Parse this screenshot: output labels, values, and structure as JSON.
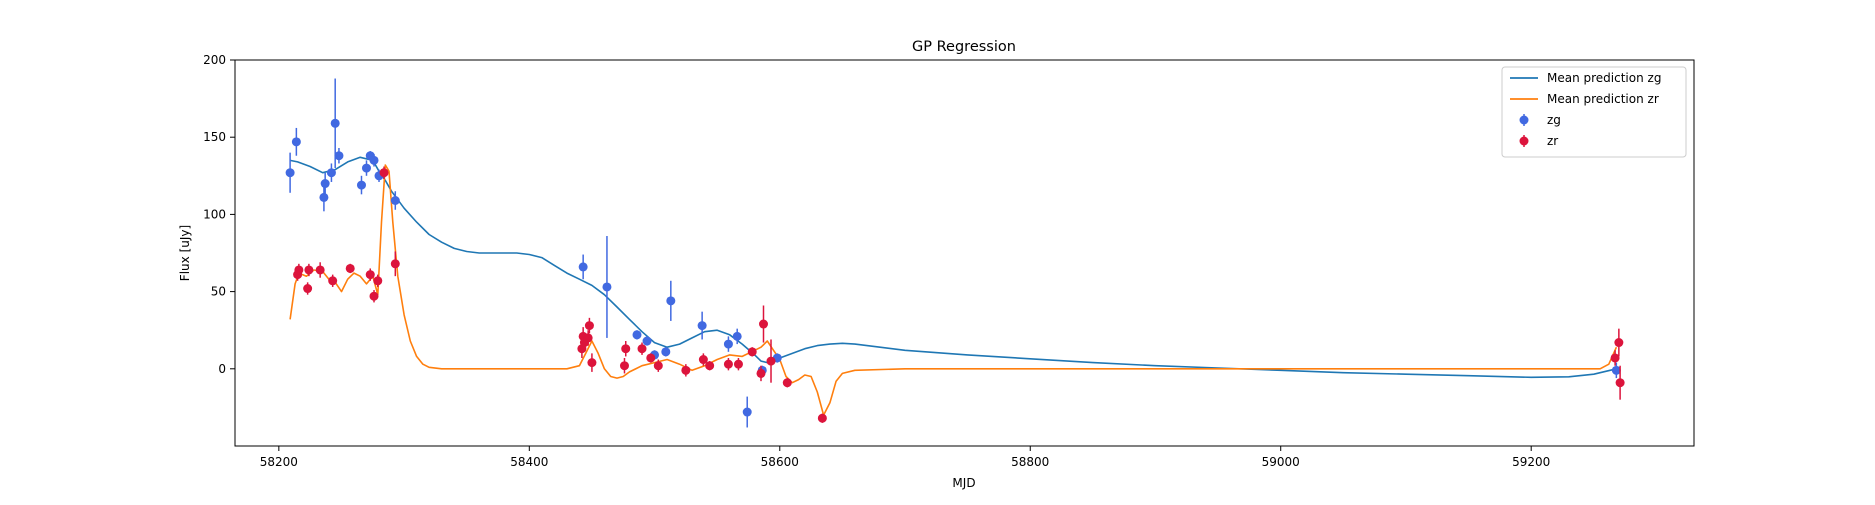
{
  "chart_data": {
    "type": "scatter",
    "title": "GP Regression",
    "xlabel": "MJD",
    "ylabel": "Flux [uJy]",
    "xlim": [
      58165,
      59330
    ],
    "ylim": [
      -50,
      200
    ],
    "xticks": [
      58200,
      58400,
      58600,
      58800,
      59000,
      59200
    ],
    "yticks": [
      0,
      50,
      100,
      150,
      200
    ],
    "grid": false,
    "legend_position": "top-right",
    "colors": {
      "zg_line": "#1f77b4",
      "zr_line": "#ff7f0e",
      "zg_points": "#4169e1",
      "zr_points": "#dc143c"
    },
    "series": [
      {
        "name": "Mean prediction zg",
        "kind": "line",
        "color": "#1f77b4",
        "x": [
          58209,
          58215,
          58225,
          58235,
          58245,
          58255,
          58265,
          58275,
          58280,
          58285,
          58290,
          58300,
          58310,
          58320,
          58330,
          58340,
          58350,
          58360,
          58370,
          58380,
          58390,
          58400,
          58410,
          58420,
          58430,
          58440,
          58450,
          58460,
          58470,
          58480,
          58490,
          58500,
          58510,
          58520,
          58530,
          58540,
          58550,
          58560,
          58570,
          58580,
          58585,
          58590,
          58600,
          58610,
          58620,
          58630,
          58640,
          58650,
          58660,
          58680,
          58700,
          58750,
          58800,
          58850,
          58900,
          58950,
          59000,
          59050,
          59100,
          59150,
          59200,
          59230,
          59250,
          59268
        ],
        "y": [
          135,
          134,
          131,
          127,
          129,
          134,
          137,
          135,
          128,
          122,
          115,
          104,
          95,
          87,
          82,
          78,
          76,
          75,
          75,
          75,
          75,
          74,
          72,
          67,
          62,
          58,
          54,
          48,
          40,
          32,
          24,
          17,
          14,
          16,
          20,
          24,
          25,
          22,
          16,
          9,
          5,
          4,
          7,
          10,
          13,
          15,
          16,
          16.5,
          16,
          14,
          12,
          9,
          6.5,
          4,
          2,
          0.5,
          -1,
          -2.5,
          -3.5,
          -4.5,
          -5.5,
          -5.2,
          -3.5,
          0
        ]
      },
      {
        "name": "Mean prediction zr",
        "kind": "line",
        "color": "#ff7f0e",
        "x": [
          58209,
          58213,
          58216,
          58222,
          58228,
          58235,
          58240,
          58245,
          58250,
          58255,
          58260,
          58265,
          58270,
          58275,
          58279,
          58282,
          58285,
          58288,
          58291,
          58295,
          58300,
          58305,
          58310,
          58315,
          58320,
          58330,
          58350,
          58400,
          58430,
          58440,
          58445,
          58450,
          58455,
          58460,
          58465,
          58470,
          58475,
          58480,
          58490,
          58500,
          58510,
          58520,
          58530,
          58540,
          58550,
          58560,
          58570,
          58580,
          58585,
          58590,
          58595,
          58600,
          58605,
          58610,
          58615,
          58620,
          58625,
          58630,
          58635,
          58640,
          58645,
          58650,
          58660,
          58700,
          58800,
          59000,
          59200,
          59255,
          59262,
          59268
        ],
        "y": [
          32,
          55,
          62,
          60,
          64,
          63,
          58,
          56,
          50,
          58,
          62,
          60,
          55,
          60,
          48,
          95,
          132,
          128,
          95,
          60,
          35,
          18,
          8,
          3,
          1,
          0,
          0,
          0,
          0,
          2,
          10,
          18,
          10,
          0,
          -5,
          -6,
          -5,
          -2,
          2,
          4,
          6,
          3,
          -1,
          2,
          6,
          9,
          8,
          12,
          14,
          18,
          12,
          6,
          -5,
          -9,
          -7,
          -4,
          -5,
          -15,
          -30,
          -22,
          -8,
          -3,
          -1,
          0,
          0,
          0,
          0,
          0,
          3,
          14
        ]
      },
      {
        "name": "zg",
        "kind": "errorbar",
        "color": "#4169e1",
        "points": [
          {
            "x": 58209,
            "y": 127,
            "err": 13
          },
          {
            "x": 58214,
            "y": 147,
            "err": 9
          },
          {
            "x": 58236,
            "y": 111,
            "err": 9
          },
          {
            "x": 58237,
            "y": 120,
            "err": 7
          },
          {
            "x": 58242,
            "y": 127,
            "err": 6
          },
          {
            "x": 58245,
            "y": 159,
            "err": 29
          },
          {
            "x": 58248,
            "y": 138,
            "err": 5
          },
          {
            "x": 58266,
            "y": 119,
            "err": 6
          },
          {
            "x": 58270,
            "y": 130,
            "err": 5
          },
          {
            "x": 58273,
            "y": 138,
            "err": 3
          },
          {
            "x": 58276,
            "y": 135,
            "err": 4
          },
          {
            "x": 58280,
            "y": 125,
            "err": 4
          },
          {
            "x": 58293,
            "y": 109,
            "err": 6
          },
          {
            "x": 58443,
            "y": 66,
            "err": 8
          },
          {
            "x": 58462,
            "y": 53,
            "err": 33
          },
          {
            "x": 58486,
            "y": 22,
            "err": 3
          },
          {
            "x": 58494,
            "y": 18,
            "err": 3
          },
          {
            "x": 58500,
            "y": 9,
            "err": 3
          },
          {
            "x": 58509,
            "y": 11,
            "err": 3
          },
          {
            "x": 58513,
            "y": 44,
            "err": 13
          },
          {
            "x": 58538,
            "y": 28,
            "err": 9
          },
          {
            "x": 58559,
            "y": 16,
            "err": 5
          },
          {
            "x": 58566,
            "y": 21,
            "err": 5
          },
          {
            "x": 58574,
            "y": -28,
            "err": 10
          },
          {
            "x": 58586,
            "y": -1,
            "err": 3
          },
          {
            "x": 58598,
            "y": 7,
            "err": 3
          },
          {
            "x": 59268,
            "y": -1,
            "err": 5
          }
        ]
      },
      {
        "name": "zr",
        "kind": "errorbar",
        "color": "#dc143c",
        "points": [
          {
            "x": 58215,
            "y": 61,
            "err": 4
          },
          {
            "x": 58216,
            "y": 64,
            "err": 4
          },
          {
            "x": 58223,
            "y": 52,
            "err": 4
          },
          {
            "x": 58224,
            "y": 64,
            "err": 4
          },
          {
            "x": 58233,
            "y": 64,
            "err": 5
          },
          {
            "x": 58243,
            "y": 57,
            "err": 4
          },
          {
            "x": 58257,
            "y": 65,
            "err": 3
          },
          {
            "x": 58273,
            "y": 61,
            "err": 4
          },
          {
            "x": 58276,
            "y": 47,
            "err": 4
          },
          {
            "x": 58279,
            "y": 57,
            "err": 4
          },
          {
            "x": 58284,
            "y": 127,
            "err": 4
          },
          {
            "x": 58293,
            "y": 68,
            "err": 8
          },
          {
            "x": 58442,
            "y": 13,
            "err": 6
          },
          {
            "x": 58443,
            "y": 21,
            "err": 6
          },
          {
            "x": 58444,
            "y": 17,
            "err": 6
          },
          {
            "x": 58447,
            "y": 20,
            "err": 5
          },
          {
            "x": 58448,
            "y": 28,
            "err": 5
          },
          {
            "x": 58450,
            "y": 4,
            "err": 6
          },
          {
            "x": 58476,
            "y": 2,
            "err": 5
          },
          {
            "x": 58477,
            "y": 13,
            "err": 5
          },
          {
            "x": 58490,
            "y": 13,
            "err": 4
          },
          {
            "x": 58497,
            "y": 7,
            "err": 3
          },
          {
            "x": 58503,
            "y": 2,
            "err": 4
          },
          {
            "x": 58525,
            "y": -1,
            "err": 4
          },
          {
            "x": 58539,
            "y": 6,
            "err": 4
          },
          {
            "x": 58544,
            "y": 2,
            "err": 3
          },
          {
            "x": 58559,
            "y": 3,
            "err": 4
          },
          {
            "x": 58567,
            "y": 3,
            "err": 4
          },
          {
            "x": 58578,
            "y": 11,
            "err": 3
          },
          {
            "x": 58585,
            "y": -3,
            "err": 5
          },
          {
            "x": 58587,
            "y": 29,
            "err": 12
          },
          {
            "x": 58593,
            "y": 5,
            "err": 14
          },
          {
            "x": 58606,
            "y": -9,
            "err": 3
          },
          {
            "x": 58634,
            "y": -32,
            "err": 3
          },
          {
            "x": 59267,
            "y": 7,
            "err": 5
          },
          {
            "x": 59270,
            "y": 17,
            "err": 9
          },
          {
            "x": 59271,
            "y": -9,
            "err": 11
          }
        ]
      }
    ]
  }
}
